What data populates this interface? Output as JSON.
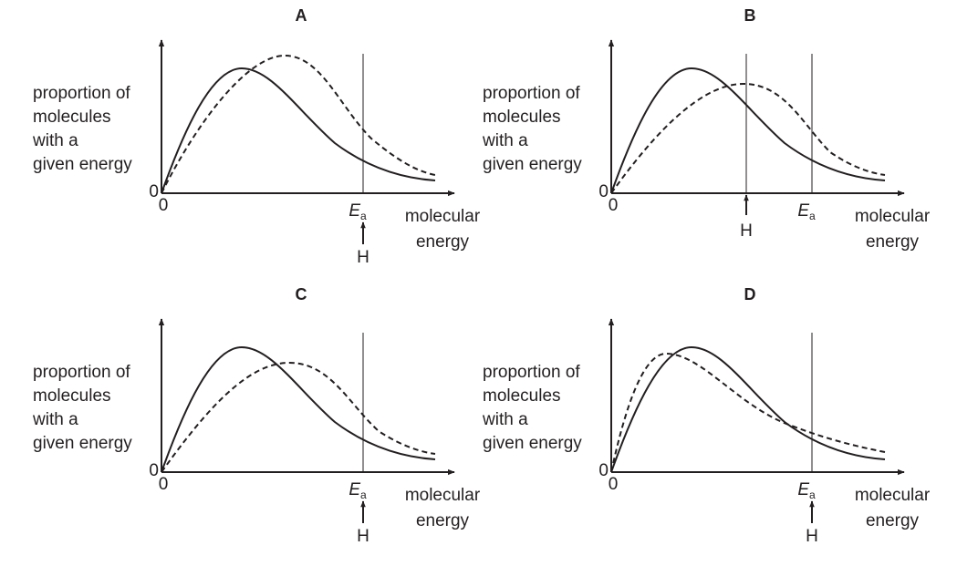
{
  "panels": [
    {
      "label": "A",
      "y_label": [
        "proportion of",
        "molecules",
        "with a",
        "given energy"
      ],
      "y_origin": "0",
      "x_origin": "0",
      "ea_symbol": "E",
      "ea_subscript": "a",
      "x_label": [
        "molecular",
        "energy"
      ],
      "marker": "H"
    },
    {
      "label": "B",
      "y_label": [
        "proportion of",
        "molecules",
        "with a",
        "given energy"
      ],
      "y_origin": "0",
      "x_origin": "0",
      "ea_symbol": "E",
      "ea_subscript": "a",
      "x_label": [
        "molecular",
        "energy"
      ],
      "marker": "H"
    },
    {
      "label": "C",
      "y_label": [
        "proportion of",
        "molecules",
        "with a",
        "given energy"
      ],
      "y_origin": "0",
      "x_origin": "0",
      "ea_symbol": "E",
      "ea_subscript": "a",
      "x_label": [
        "molecular",
        "energy"
      ],
      "marker": "H"
    },
    {
      "label": "D",
      "y_label": [
        "proportion of",
        "molecules",
        "with a",
        "given energy"
      ],
      "y_origin": "0",
      "x_origin": "0",
      "ea_symbol": "E",
      "ea_subscript": "a",
      "x_label": [
        "molecular",
        "energy"
      ],
      "marker": "H"
    }
  ]
}
